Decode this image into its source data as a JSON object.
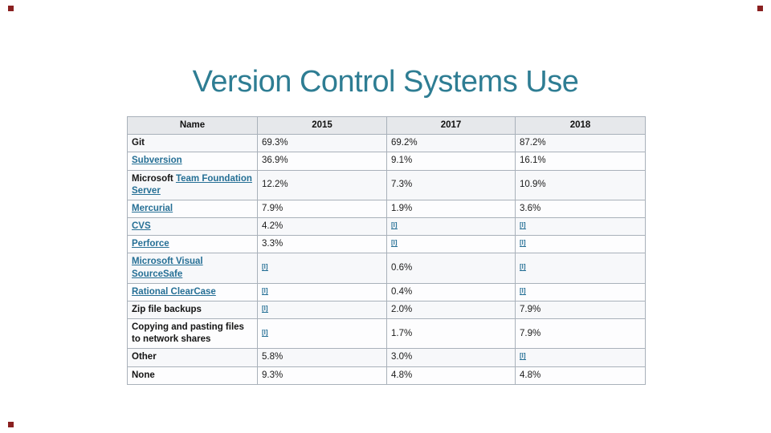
{
  "slide": {
    "title": "Version Control Systems Use"
  },
  "colors": {
    "title_text": "#2e7d93",
    "link": "#256f95",
    "header_background": "#e6e8eb",
    "table_border": "#a9b1ba",
    "corner_handle": "#8a2020"
  },
  "corner_handles": [
    "top-left",
    "top-right",
    "bottom-left"
  ],
  "table": {
    "footnote_marker": "[l]",
    "columns": [
      "Name",
      "2015",
      "2017",
      "2018"
    ],
    "rows": [
      {
        "name_parts": [
          {
            "text": "Git",
            "link": false
          }
        ],
        "values": [
          "69.3%",
          "69.2%",
          "87.2%"
        ]
      },
      {
        "name_parts": [
          {
            "text": "Subversion",
            "link": true
          }
        ],
        "values": [
          "36.9%",
          "9.1%",
          "16.1%"
        ]
      },
      {
        "name_parts": [
          {
            "text": "Microsoft ",
            "link": false
          },
          {
            "text": "Team Foundation Server",
            "link": true
          }
        ],
        "values": [
          "12.2%",
          "7.3%",
          "10.9%"
        ]
      },
      {
        "name_parts": [
          {
            "text": "Mercurial",
            "link": true
          }
        ],
        "values": [
          "7.9%",
          "1.9%",
          "3.6%"
        ]
      },
      {
        "name_parts": [
          {
            "text": "CVS",
            "link": true
          }
        ],
        "values": [
          "4.2%",
          "[l]",
          "[l]"
        ]
      },
      {
        "name_parts": [
          {
            "text": "Perforce",
            "link": true
          }
        ],
        "values": [
          "3.3%",
          "[l]",
          "[l]"
        ]
      },
      {
        "name_parts": [
          {
            "text": "Microsoft Visual SourceSafe",
            "link": true
          }
        ],
        "values": [
          "[l]",
          "0.6%",
          "[l]"
        ]
      },
      {
        "name_parts": [
          {
            "text": "Rational ClearCase",
            "link": true
          }
        ],
        "values": [
          "[l]",
          "0.4%",
          "[l]"
        ]
      },
      {
        "name_parts": [
          {
            "text": "Zip file backups",
            "link": false
          }
        ],
        "values": [
          "[l]",
          "2.0%",
          "7.9%"
        ]
      },
      {
        "name_parts": [
          {
            "text": "Copying and pasting files to network shares",
            "link": false
          }
        ],
        "values": [
          "[l]",
          "1.7%",
          "7.9%"
        ]
      },
      {
        "name_parts": [
          {
            "text": "Other",
            "link": false
          }
        ],
        "values": [
          "5.8%",
          "3.0%",
          "[l]"
        ]
      },
      {
        "name_parts": [
          {
            "text": "None",
            "link": false
          }
        ],
        "values": [
          "9.3%",
          "4.8%",
          "4.8%"
        ]
      }
    ]
  }
}
